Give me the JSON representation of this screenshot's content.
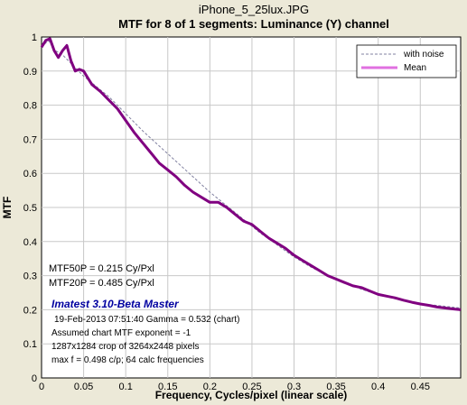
{
  "chart_data": {
    "type": "line",
    "title": "iPhone_5_25lux.JPG",
    "subtitle": "MTF for 8 of 1 segments:  Luminance (Y) channel",
    "xlabel": "Frequency, Cycles/pixel (linear scale)",
    "ylabel": "MTF",
    "xlim": [
      0,
      0.498
    ],
    "ylim": [
      0,
      1
    ],
    "x_ticks": [
      "0",
      "0.05",
      "0.1",
      "0.15",
      "0.2",
      "0.25",
      "0.3",
      "0.35",
      "0.4",
      "0.45"
    ],
    "x_tick_values": [
      0,
      0.05,
      0.1,
      0.15,
      0.2,
      0.25,
      0.3,
      0.35,
      0.4,
      0.45
    ],
    "y_ticks": [
      "0",
      "0.1",
      "0.2",
      "0.3",
      "0.4",
      "0.5",
      "0.6",
      "0.7",
      "0.8",
      "0.9",
      "1"
    ],
    "y_tick_values": [
      0,
      0.1,
      0.2,
      0.3,
      0.4,
      0.5,
      0.6,
      0.7,
      0.8,
      0.9,
      1
    ],
    "grid": true,
    "legend_position": "top-right",
    "series": [
      {
        "name": "with noise",
        "color": "#8080a0",
        "style": "dashed",
        "x": [
          0,
          0.008,
          0.016,
          0.024,
          0.032,
          0.04,
          0.05,
          0.06,
          0.07,
          0.08,
          0.09,
          0.1,
          0.12,
          0.14,
          0.16,
          0.18,
          0.2,
          0.22,
          0.24,
          0.26,
          0.28,
          0.3,
          0.32,
          0.34,
          0.36,
          0.38,
          0.4,
          0.42,
          0.44,
          0.46,
          0.48,
          0.498
        ],
        "y": [
          0.97,
          0.99,
          0.96,
          0.95,
          0.93,
          0.91,
          0.885,
          0.865,
          0.845,
          0.825,
          0.8,
          0.775,
          0.725,
          0.68,
          0.635,
          0.59,
          0.545,
          0.505,
          0.465,
          0.425,
          0.39,
          0.355,
          0.325,
          0.3,
          0.28,
          0.26,
          0.245,
          0.232,
          0.222,
          0.215,
          0.21,
          0.205
        ]
      },
      {
        "name": "Mean",
        "color": "#800080",
        "style": "solid",
        "x": [
          0,
          0.005,
          0.01,
          0.015,
          0.02,
          0.025,
          0.03,
          0.035,
          0.04,
          0.045,
          0.05,
          0.055,
          0.06,
          0.07,
          0.08,
          0.09,
          0.1,
          0.11,
          0.12,
          0.13,
          0.14,
          0.15,
          0.16,
          0.17,
          0.18,
          0.19,
          0.2,
          0.21,
          0.22,
          0.23,
          0.24,
          0.25,
          0.26,
          0.27,
          0.28,
          0.29,
          0.3,
          0.31,
          0.32,
          0.33,
          0.34,
          0.35,
          0.36,
          0.37,
          0.38,
          0.39,
          0.4,
          0.41,
          0.42,
          0.43,
          0.44,
          0.45,
          0.46,
          0.47,
          0.48,
          0.49,
          0.498
        ],
        "y": [
          0.97,
          0.99,
          0.995,
          0.96,
          0.94,
          0.96,
          0.975,
          0.93,
          0.9,
          0.905,
          0.9,
          0.88,
          0.86,
          0.84,
          0.815,
          0.79,
          0.755,
          0.72,
          0.69,
          0.66,
          0.63,
          0.61,
          0.59,
          0.565,
          0.545,
          0.53,
          0.515,
          0.515,
          0.5,
          0.48,
          0.46,
          0.45,
          0.43,
          0.41,
          0.395,
          0.38,
          0.36,
          0.345,
          0.33,
          0.315,
          0.3,
          0.29,
          0.28,
          0.27,
          0.265,
          0.255,
          0.245,
          0.24,
          0.235,
          0.228,
          0.222,
          0.217,
          0.213,
          0.208,
          0.205,
          0.202,
          0.2
        ]
      }
    ]
  },
  "annotations": {
    "mtf50p": "MTF50P = 0.215 Cy/Pxl",
    "mtf20p": "MTF20P = 0.485 Cy/Pxl",
    "brand": "Imatest 3.10-Beta Master",
    "date_gamma": "19-Feb-2013 07:51:40    Gamma = 0.532 (chart)",
    "exponent": "Assumed chart MTF exponent = -1",
    "crop": "1287x1284 crop of 3264x2448 pixels",
    "maxf": "max f = 0.498 c/p;  64 calc frequencies"
  }
}
